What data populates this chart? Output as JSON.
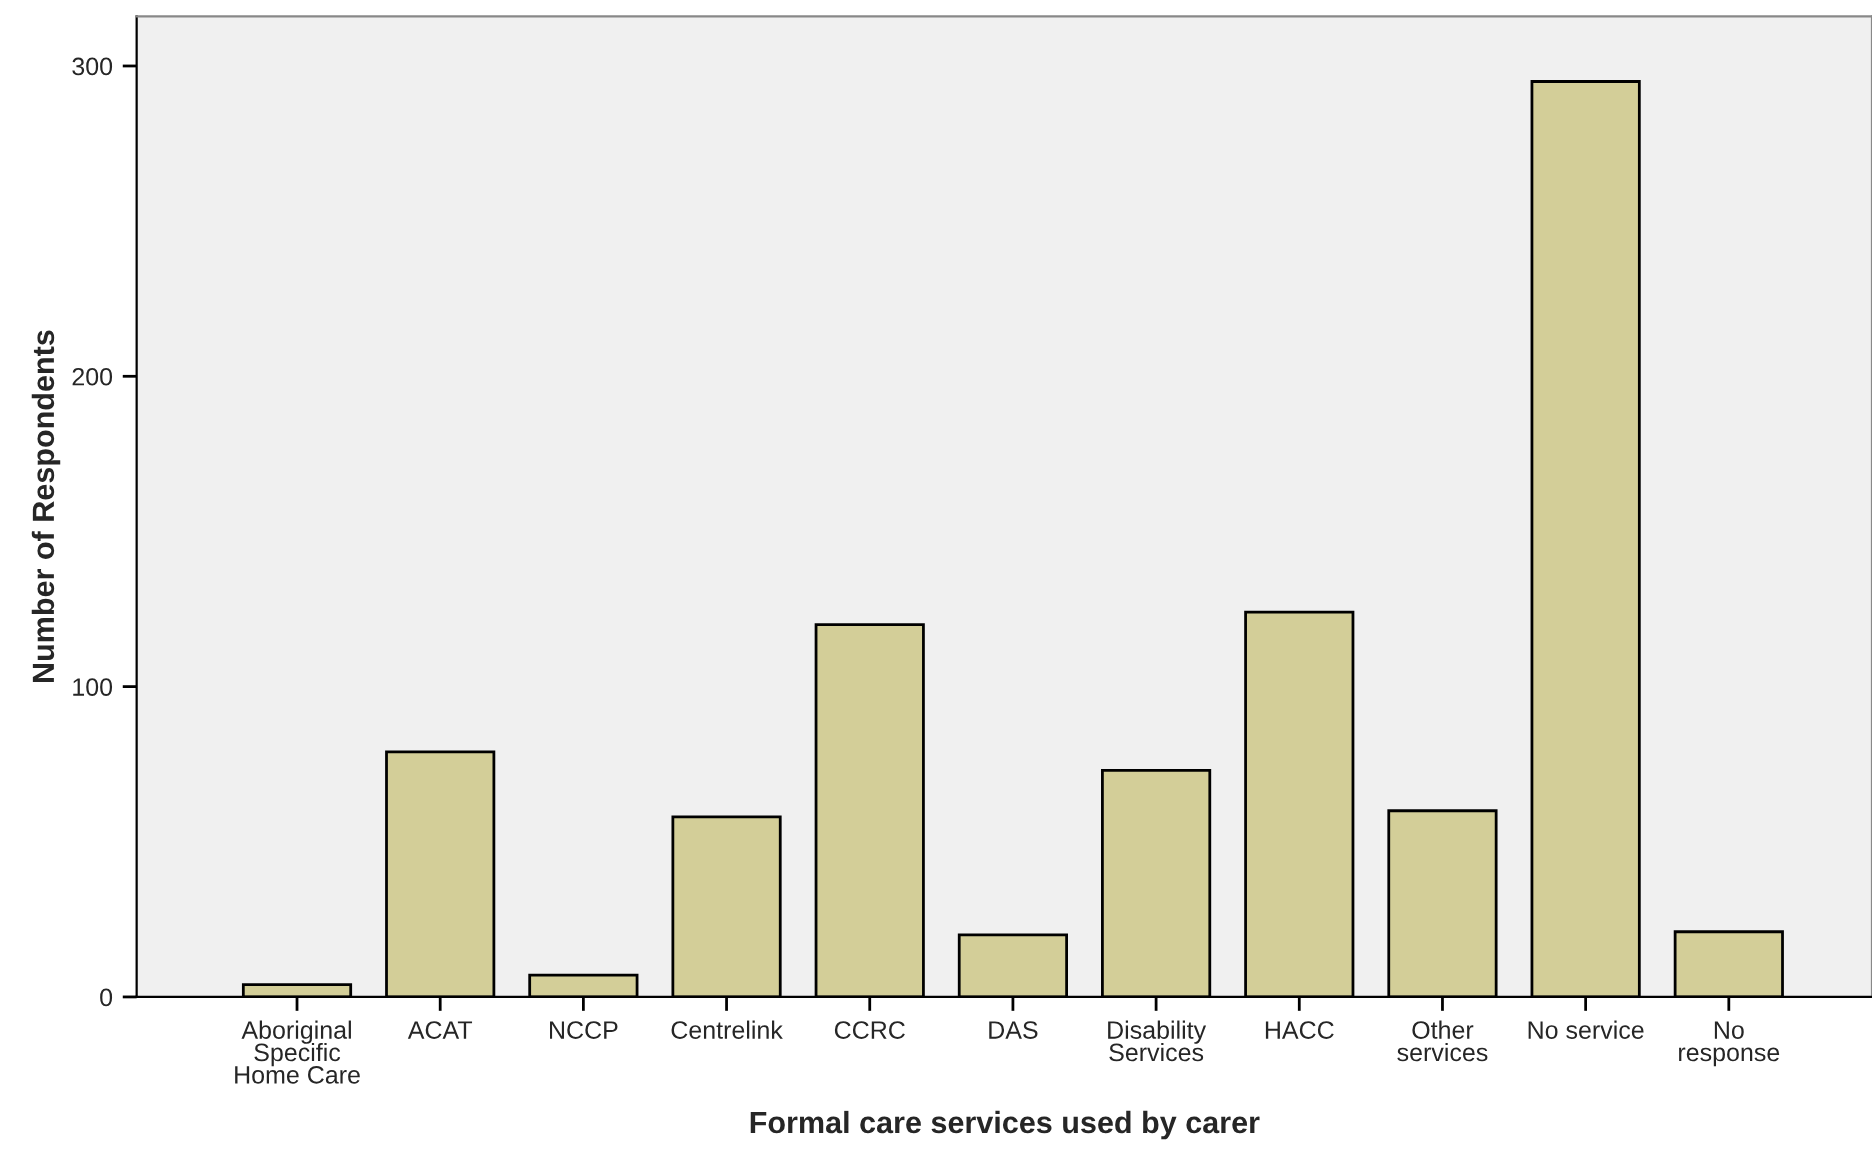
{
  "chart_data": {
    "type": "bar",
    "xlabel": "Formal care services used by carer",
    "ylabel": "Number of Respondents",
    "categories": [
      "Aboriginal\nSpecific\nHome Care",
      "ACAT",
      "NCCP",
      "Centrelink",
      "CCRC",
      "DAS",
      "Disability\nServices",
      "HACC",
      "Other\nservices",
      "No service",
      "No\nresponse"
    ],
    "values": [
      4,
      79,
      7,
      58,
      120,
      20,
      73,
      124,
      60,
      295,
      21
    ],
    "color": "#d3ce98",
    "ylim": [
      0,
      316
    ],
    "yticks": [
      0,
      100,
      200,
      300
    ],
    "grid": false
  }
}
